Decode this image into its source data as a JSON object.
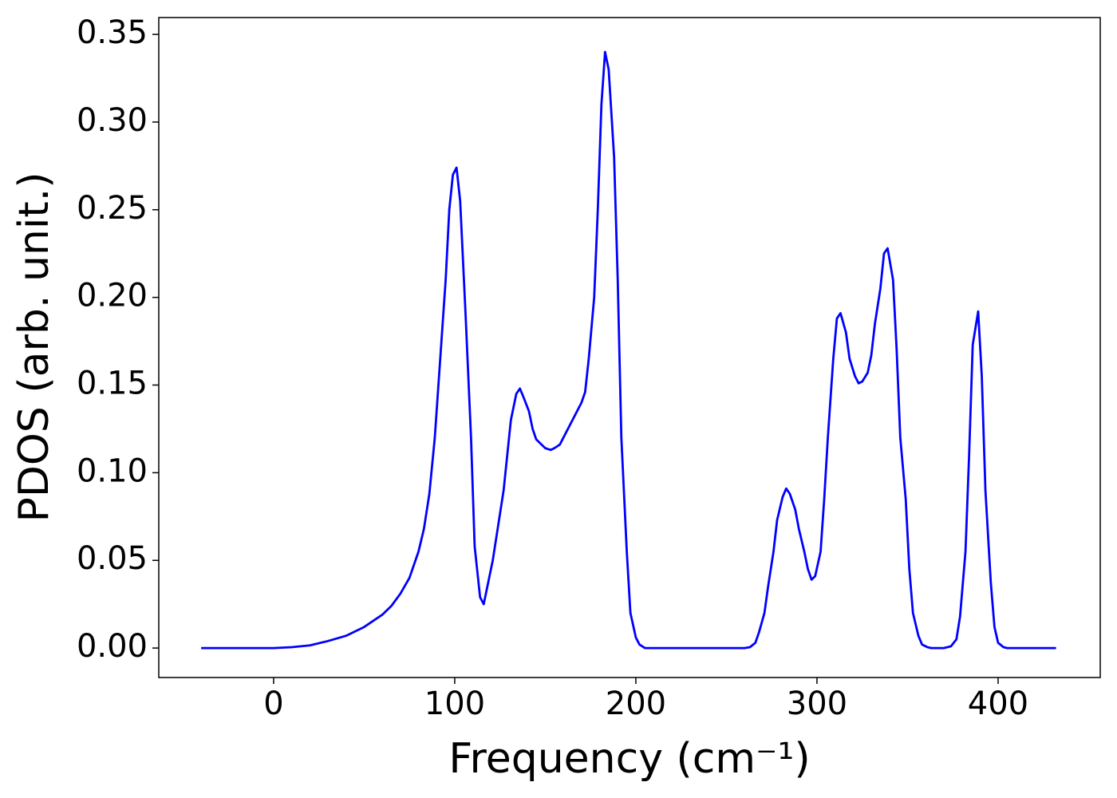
{
  "chart_data": {
    "type": "line",
    "xlabel": "Frequency (cm⁻¹)",
    "ylabel": "PDOS (arb. unit.)",
    "x": [
      -40,
      0,
      10,
      20,
      30,
      40,
      50,
      60,
      65,
      70,
      75,
      80,
      83,
      86,
      89,
      92,
      95,
      97,
      99,
      101,
      103,
      106,
      109,
      111,
      114,
      116,
      118,
      121,
      124,
      127,
      129,
      131,
      134,
      136,
      138,
      141,
      143,
      145,
      148,
      150,
      153,
      155,
      158,
      160,
      163,
      165,
      170,
      172,
      174,
      177,
      179,
      181,
      183,
      185,
      188,
      190,
      192,
      195,
      197,
      200,
      202,
      205,
      210,
      260,
      263,
      266,
      268,
      271,
      273,
      276,
      278,
      281,
      283,
      285,
      288,
      290,
      293,
      295,
      297,
      299,
      302,
      304,
      306,
      309,
      311,
      313,
      316,
      318,
      321,
      323,
      325,
      328,
      330,
      332,
      335,
      337,
      339,
      342,
      344,
      346,
      349,
      351,
      353,
      356,
      358,
      361,
      363,
      370,
      374,
      377,
      379,
      382,
      384,
      386,
      389,
      391,
      393,
      396,
      398,
      400,
      403,
      405,
      432
    ],
    "series": [
      {
        "name": "PDOS",
        "color": "#0000ff",
        "values": [
          0,
          0,
          0.0005,
          0.0015,
          0.004,
          0.007,
          0.012,
          0.019,
          0.024,
          0.031,
          0.04,
          0.055,
          0.068,
          0.088,
          0.12,
          0.165,
          0.21,
          0.25,
          0.27,
          0.274,
          0.255,
          0.19,
          0.12,
          0.058,
          0.029,
          0.025,
          0.035,
          0.05,
          0.07,
          0.09,
          0.11,
          0.13,
          0.145,
          0.148,
          0.143,
          0.135,
          0.125,
          0.119,
          0.116,
          0.114,
          0.113,
          0.114,
          0.116,
          0.12,
          0.126,
          0.13,
          0.14,
          0.146,
          0.165,
          0.2,
          0.25,
          0.31,
          0.34,
          0.33,
          0.28,
          0.21,
          0.12,
          0.055,
          0.02,
          0.006,
          0.002,
          0,
          0,
          0,
          0.0005,
          0.003,
          0.009,
          0.02,
          0.035,
          0.055,
          0.073,
          0.086,
          0.091,
          0.088,
          0.079,
          0.068,
          0.055,
          0.045,
          0.039,
          0.041,
          0.055,
          0.085,
          0.12,
          0.165,
          0.188,
          0.191,
          0.18,
          0.165,
          0.155,
          0.151,
          0.152,
          0.157,
          0.167,
          0.185,
          0.205,
          0.225,
          0.228,
          0.21,
          0.17,
          0.12,
          0.085,
          0.045,
          0.02,
          0.007,
          0.002,
          0.0005,
          0,
          0,
          0.001,
          0.005,
          0.018,
          0.055,
          0.11,
          0.173,
          0.192,
          0.155,
          0.09,
          0.037,
          0.012,
          0.003,
          0.0005,
          0,
          0
        ]
      }
    ],
    "xlim": [
      -63.4,
      456.4
    ],
    "ylim": [
      -0.0168,
      0.3596
    ],
    "xticks": [
      0,
      100,
      200,
      300,
      400
    ],
    "yticks": [
      {
        "value": 0,
        "label": "0.00"
      },
      {
        "value": 0.05,
        "label": "0.05"
      },
      {
        "value": 0.1,
        "label": "0.10"
      },
      {
        "value": 0.15,
        "label": "0.15"
      },
      {
        "value": 0.2,
        "label": "0.20"
      },
      {
        "value": 0.25,
        "label": "0.25"
      },
      {
        "value": 0.3,
        "label": "0.30"
      },
      {
        "value": 0.35,
        "label": "0.35"
      }
    ],
    "grid": false
  }
}
